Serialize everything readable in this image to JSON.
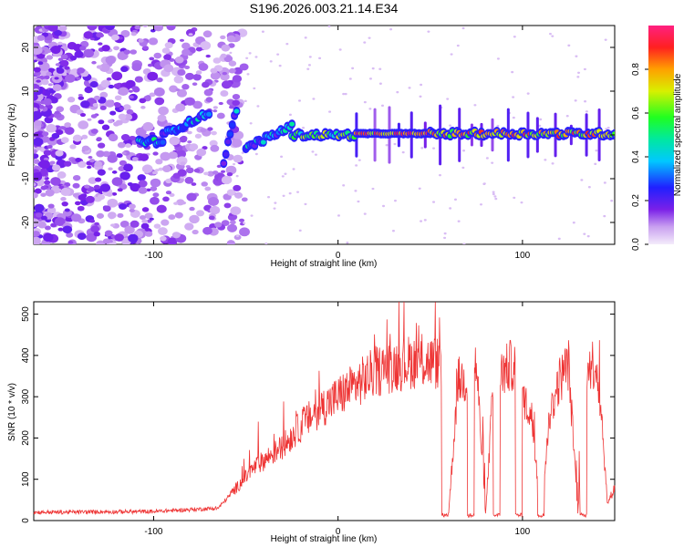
{
  "title": "S196.2026.003.21.14.E34",
  "chart_data": [
    {
      "type": "heatmap",
      "xlabel": "Height of straight line (km)",
      "ylabel": "Frequency (Hz)",
      "xlim": [
        -165,
        150
      ],
      "ylim": [
        -25,
        25
      ],
      "xticks": [
        -100,
        0,
        100
      ],
      "yticks": [
        -20,
        -10,
        0,
        10,
        20
      ],
      "colorbar": {
        "label": "Normalized spectral amplitude",
        "range": [
          0,
          1
        ],
        "ticks": [
          "0.0",
          "0.2",
          "0.4",
          "0.6",
          "0.8"
        ],
        "colormap": "rainbow"
      },
      "ridge": {
        "description": "narrow line near 0 Hz, strongest from 0 to 150 km",
        "segments": [
          {
            "x": [
              -108,
              -95
            ],
            "freq": -1.5,
            "amp": 0.55
          },
          {
            "x": [
              -95,
              -70
            ],
            "freq": [
              0,
              5
            ],
            "amp": 0.5
          },
          {
            "x": [
              -62,
              -55
            ],
            "freq": [
              -6,
              6
            ],
            "amp": 0.5
          },
          {
            "x": [
              -50,
              -25
            ],
            "freq": [
              -3,
              2
            ],
            "amp": 0.5
          },
          {
            "x": [
              -25,
              10
            ],
            "freq": 0,
            "amp": 0.75
          },
          {
            "x": [
              10,
              50
            ],
            "freq": 0.3,
            "amp": 0.98
          },
          {
            "x": [
              50,
              150
            ],
            "freq": 0.3,
            "amp": 0.9
          }
        ]
      }
    },
    {
      "type": "line",
      "xlabel": "Height of straight line (km)",
      "ylabel": "SNR (10 * v/v)",
      "xlim": [
        -165,
        150
      ],
      "ylim": [
        0,
        530
      ],
      "xticks": [
        -100,
        0,
        100
      ],
      "yticks": [
        0,
        100,
        200,
        300,
        400,
        500
      ],
      "color": "#ee3333",
      "envelope_x": [
        -165,
        -100,
        -65,
        -55,
        -45,
        -30,
        -20,
        -10,
        0,
        10,
        20,
        30,
        40,
        50,
        55,
        58,
        60,
        65,
        70,
        75,
        80,
        85,
        90,
        95,
        100,
        105,
        110,
        115,
        120,
        125,
        130,
        135,
        140,
        143,
        146,
        150
      ],
      "envelope_y": [
        20,
        22,
        30,
        80,
        130,
        180,
        230,
        270,
        300,
        330,
        360,
        375,
        385,
        385,
        380,
        360,
        20,
        340,
        340,
        380,
        15,
        390,
        360,
        380,
        300,
        250,
        15,
        260,
        340,
        380,
        15,
        380,
        380,
        250,
        40,
        80
      ],
      "drop_x": [
        58,
        72,
        86,
        98,
        110,
        133
      ]
    }
  ]
}
